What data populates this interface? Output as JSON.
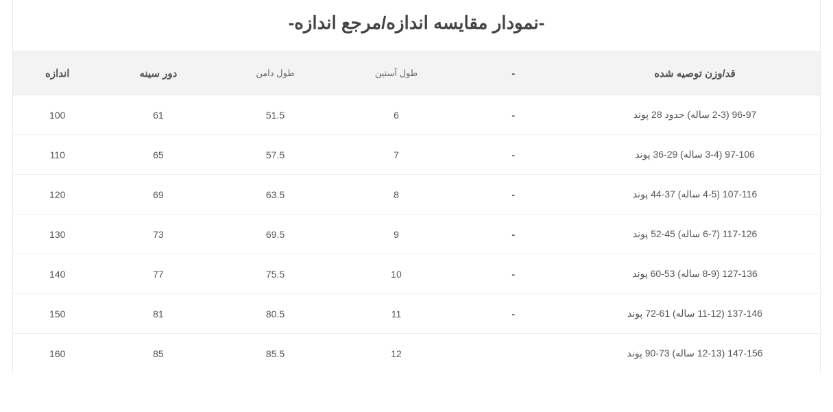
{
  "title": "-نمودار مقایسه اندازه/مرجع اندازه-",
  "columns": {
    "size": "اندازه",
    "bust": "دور سینه",
    "skirt": "طول دامن",
    "sleeve": "طول آستین",
    "dash": "-",
    "rec": "قد/وزن توصیه شده"
  },
  "rows": [
    {
      "size": "100",
      "bust": "61",
      "skirt": "51.5",
      "sleeve": "6",
      "dash": "-",
      "rec": "96-97 (2-3 ساله) حدود 28 پوند"
    },
    {
      "size": "110",
      "bust": "65",
      "skirt": "57.5",
      "sleeve": "7",
      "dash": "-",
      "rec": "97-106 (3-4 ساله) 29-36 پوند"
    },
    {
      "size": "120",
      "bust": "69",
      "skirt": "63.5",
      "sleeve": "8",
      "dash": "-",
      "rec": "107-116 (4-5 ساله) 37-44 پوند"
    },
    {
      "size": "130",
      "bust": "73",
      "skirt": "69.5",
      "sleeve": "9",
      "dash": "-",
      "rec": "117-126 (6-7 ساله) 45-52 پوند"
    },
    {
      "size": "140",
      "bust": "77",
      "skirt": "75.5",
      "sleeve": "10",
      "dash": "-",
      "rec": "127-136 (8-9 ساله) 53-60 پوند"
    },
    {
      "size": "150",
      "bust": "81",
      "skirt": "80.5",
      "sleeve": "11",
      "dash": "-",
      "rec": "137-146 (11-12 ساله) 61-72 پوند"
    },
    {
      "size": "160",
      "bust": "85",
      "skirt": "85.5",
      "sleeve": "12",
      "dash": "",
      "rec": "147-156 (12-13 ساله) 73-90 پوند"
    }
  ]
}
